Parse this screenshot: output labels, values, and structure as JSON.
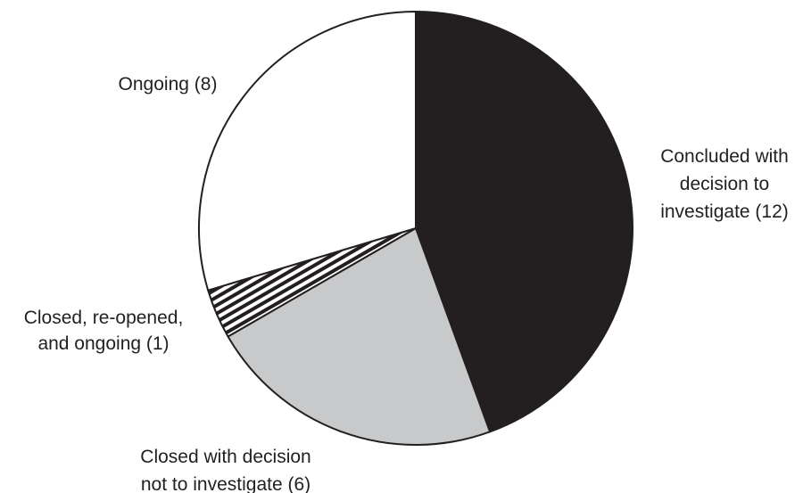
{
  "chart_data": {
    "type": "pie",
    "title": "",
    "start_angle_deg": 0,
    "direction": "clockwise",
    "slices": [
      {
        "label_lines": [
          "Concluded with",
          "decision to",
          "investigate (12)"
        ],
        "value": 12,
        "fill": "#231f20",
        "pattern": "solid"
      },
      {
        "label_lines": [
          "Closed with decision",
          "not to investigate (6)"
        ],
        "value": 6,
        "fill": "#c8c9cb",
        "pattern": "solid"
      },
      {
        "label_lines": [
          "Closed, re-opened,",
          "and ongoing (1)"
        ],
        "value": 1,
        "fill": "#231f20",
        "pattern": "stripes"
      },
      {
        "label_lines": [
          "Ongoing (8)"
        ],
        "value": 8,
        "fill": "#ffffff",
        "pattern": "solid"
      }
    ],
    "stroke_color": "#231f20"
  }
}
